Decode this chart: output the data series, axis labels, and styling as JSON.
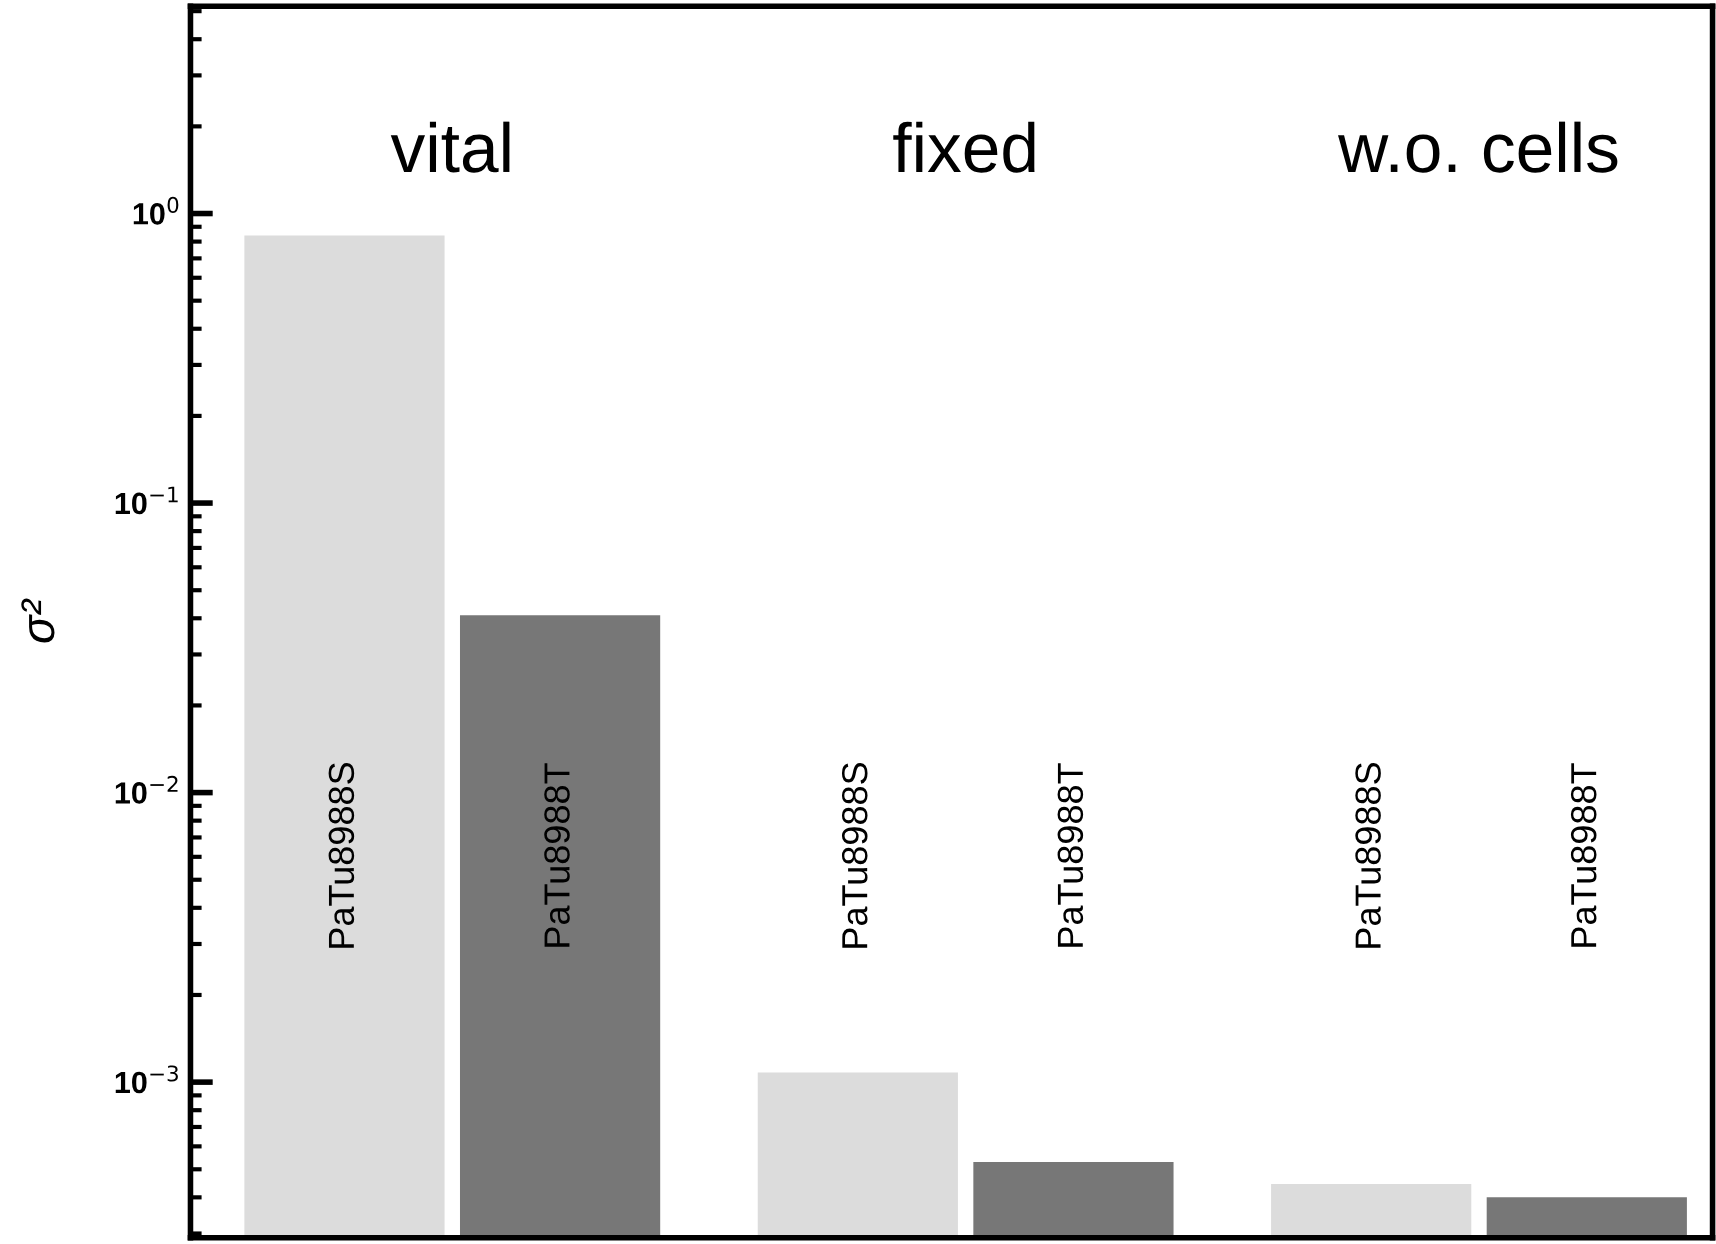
{
  "chart_data": {
    "type": "bar",
    "ylabel": "σ²",
    "log": "y",
    "categories": [
      "vital",
      "fixed",
      "w.o. cells"
    ],
    "series": [
      {
        "name": "PaTu8988S",
        "color": "#dcdcdc",
        "values": [
          0.84,
          0.00108,
          0.000445
        ]
      },
      {
        "name": "PaTu8988T",
        "color": "#777777",
        "values": [
          0.041,
          0.00053,
          0.0004
        ]
      }
    ],
    "ylim": [
      0.00029,
      5.2
    ],
    "yticks": [
      {
        "value": 0.001,
        "label": "10$^{−3}$"
      },
      {
        "value": 0.01,
        "label": "10$^{−2}$"
      },
      {
        "value": 0.1,
        "label": "10$^{−1}$"
      },
      {
        "value": 1,
        "label": "10$^{0}$"
      }
    ],
    "grid": false,
    "legend": false
  }
}
